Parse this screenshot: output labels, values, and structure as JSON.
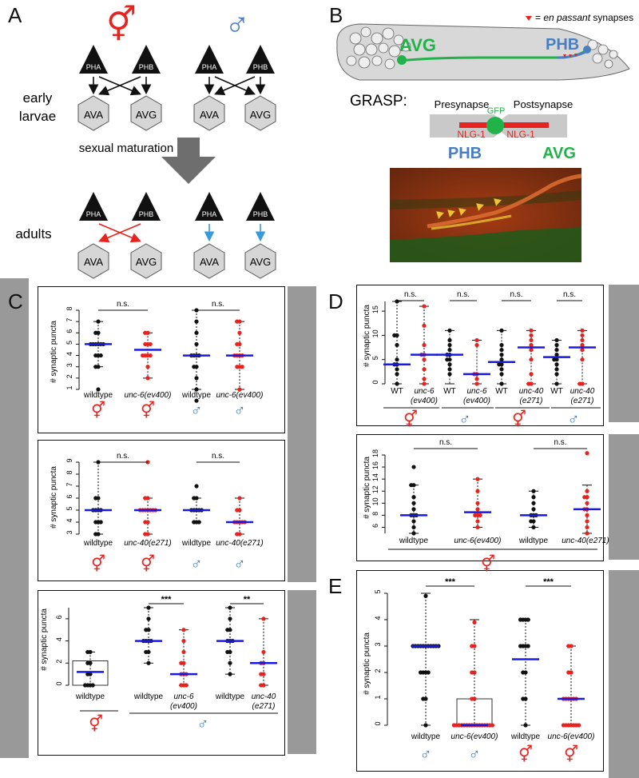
{
  "panels": {
    "A": "A",
    "B": "B",
    "C": "C",
    "D": "D",
    "E": "E"
  },
  "colors": {
    "red": "#e8231f",
    "blue": "#4a7fbf",
    "green": "#22b24a",
    "black": "#111111",
    "median": "#1a1adf"
  },
  "panelA": {
    "herm_symbol": "⚥",
    "male_symbol": "♂",
    "stage_early": "early",
    "stage_larvae": "larvae",
    "stage_adults": "adults",
    "maturation": "sexual maturation",
    "pha": "PHA",
    "phb": "PHB",
    "ava": "AVA",
    "avg": "AVG"
  },
  "panelB": {
    "legend_prefix": "= ",
    "legend_italic": "en passant",
    "legend_suffix": " synapses",
    "avg": "AVG",
    "phb": "PHB",
    "grasp": "GRASP:",
    "presynapse": "Presynapse",
    "postsynapse": "Postsynapse",
    "gfp": "GFP",
    "nlg_left": "NLG-1",
    "nlg_right": "NLG-1",
    "phb_big": "PHB",
    "avg_big": "AVG"
  },
  "ylabel": "# synaptic puncta",
  "ns": "n.s.",
  "sig3": "***",
  "sig2": "**",
  "sym_herm": "⚥",
  "sym_male": "♂",
  "C1": {
    "yticks": [
      "1",
      "2",
      "3",
      "4",
      "5",
      "6",
      "7",
      "8"
    ],
    "labels": [
      "wildtype",
      "unc-6(ev400)",
      "wildtype",
      "unc-6(ev400)"
    ],
    "medians": [
      5,
      4.5,
      4,
      4
    ]
  },
  "C2": {
    "yticks": [
      "3",
      "4",
      "5",
      "6",
      "7",
      "8",
      "9"
    ],
    "labels": [
      "wildtype",
      "unc-40(e271)",
      "wildtype",
      "unc-40(e271)"
    ],
    "medians": [
      5,
      5,
      5,
      4
    ]
  },
  "C3": {
    "yticks": [
      "0",
      "2",
      "4",
      "6"
    ],
    "labels": [
      "wildtype",
      "wildtype",
      "unc-6",
      "(ev400)",
      "wildtype",
      "unc-40",
      "(e271)"
    ],
    "medians": [
      1.2,
      4,
      1,
      4,
      2
    ]
  },
  "D1": {
    "yticks": [
      "0",
      "5",
      "10",
      "15"
    ],
    "labels": [
      "WT",
      "unc-6",
      "(ev400)",
      "WT",
      "unc-6",
      "(ev400)",
      "WT",
      "unc-40",
      "(e271)",
      "WT",
      "unc-40",
      "(e271)"
    ],
    "medians": [
      4,
      6,
      6,
      2,
      4.5,
      7.5,
      5.5,
      7.5
    ]
  },
  "D2": {
    "yticks": [
      "6",
      "8",
      "10",
      "12",
      "14",
      "16",
      "18"
    ],
    "labels": [
      "wildtype",
      "unc-6(ev400)",
      "wildtype",
      "unc-40(e271)"
    ],
    "medians": [
      8,
      8.5,
      8,
      9
    ]
  },
  "E": {
    "yticks": [
      "0",
      "1",
      "2",
      "3",
      "4",
      "5"
    ],
    "labels": [
      "wildtype",
      "unc-6(ev400)",
      "wildtype",
      "unc-6(ev400)"
    ],
    "medians": [
      3,
      0,
      2.5,
      1
    ]
  }
}
